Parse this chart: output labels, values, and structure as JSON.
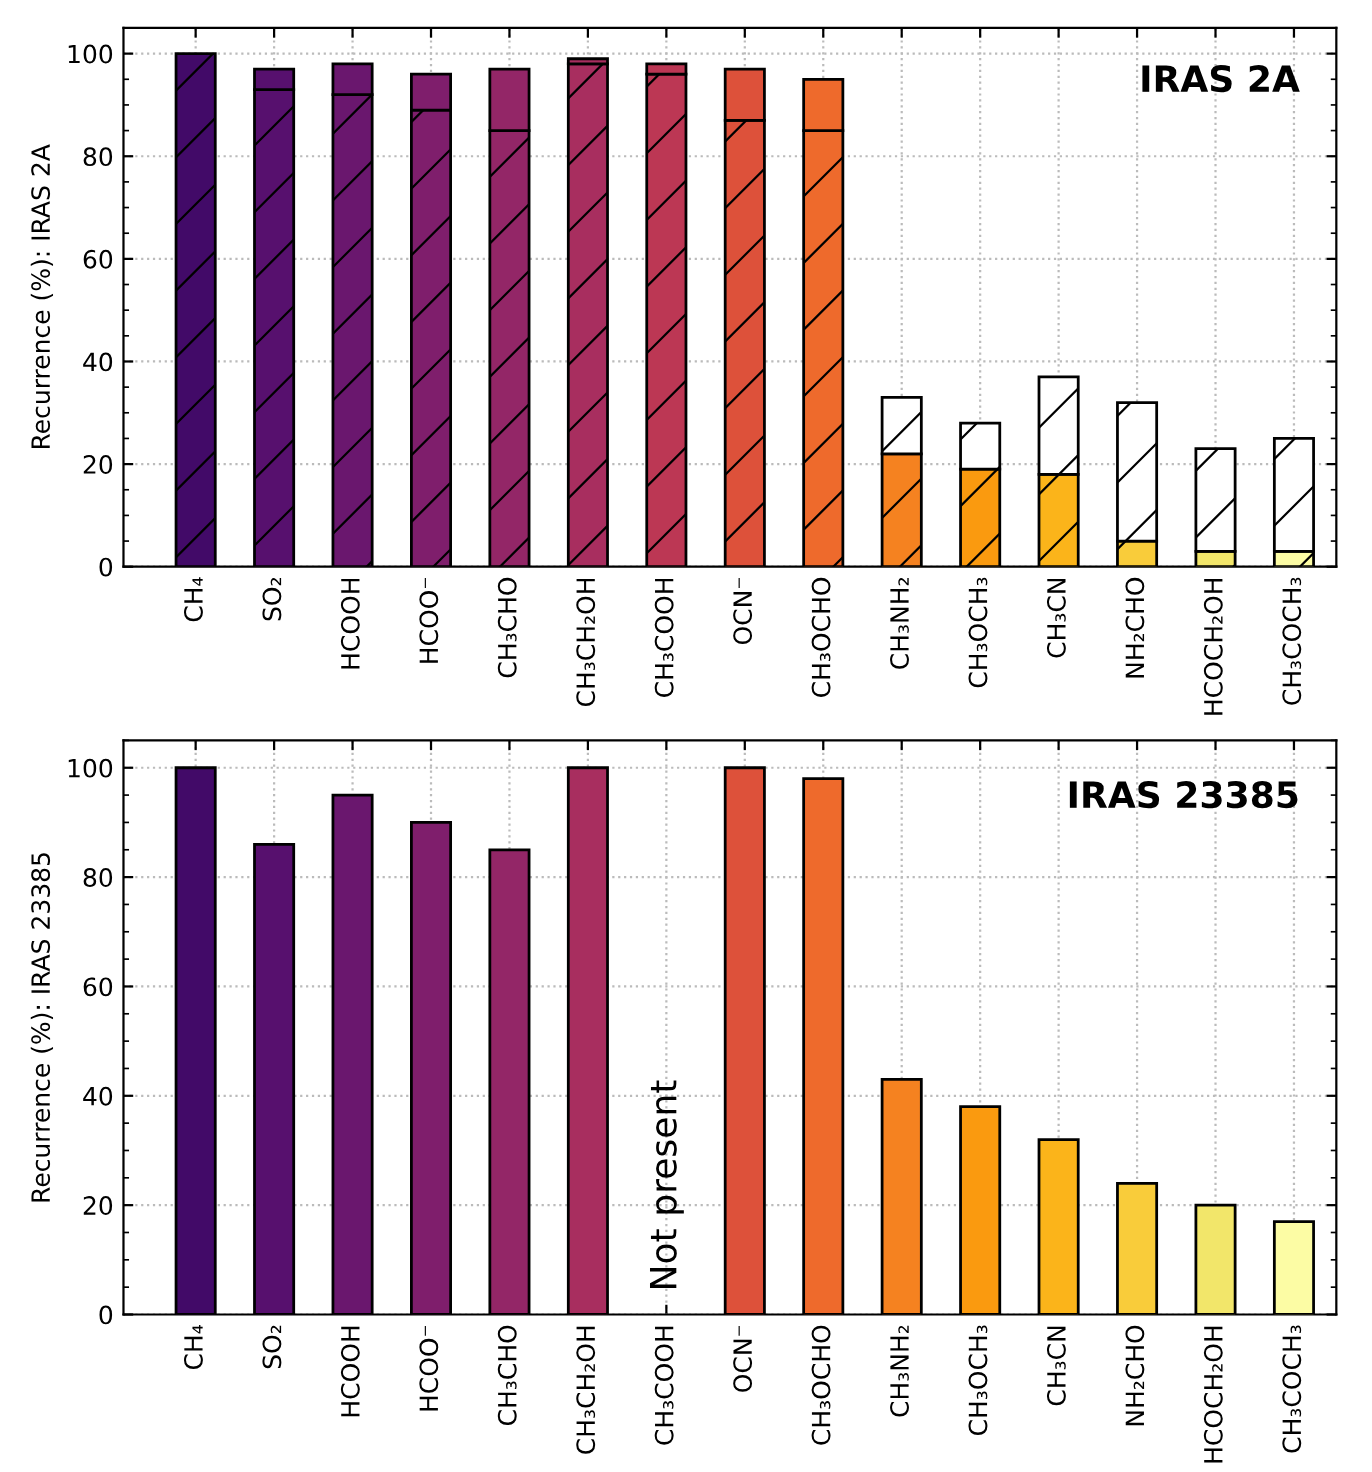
{
  "chart_data": [
    {
      "type": "bar",
      "title": "IRAS 2A",
      "ylabel": "Recurrence (%): IRAS 2A",
      "stacked": true,
      "categories": [
        "CH₄",
        "SO₂",
        "HCOOH",
        "HCOO⁻",
        "CH₃CHO",
        "CH₃CH₂OH",
        "CH₃COOH",
        "OCN⁻",
        "CH₃OCHO",
        "CH₃NH₂",
        "CH₃OCH₃",
        "CH₃CN",
        "NH₂CHO",
        "HCOCH₂OH",
        "CH₃COCH₃"
      ],
      "series": [
        {
          "colors": [
            "#420a68",
            "#57106e",
            "#6a176e",
            "#7f1e6c",
            "#932667",
            "#a82e5f",
            "#bc3754",
            "#dd513a",
            "#ee6a2c",
            "#f58220",
            "#fa9a0f",
            "#fbb41a",
            "#f9cc3a",
            "#f2e66a",
            "#fcfca4"
          ],
          "values": [
            100,
            93,
            92,
            89,
            85,
            98,
            96,
            87,
            85,
            22,
            19,
            18,
            5,
            3,
            3
          ]
        },
        {
          "colors": [
            "#420a68",
            "#57106e",
            "#6a176e",
            "#7f1e6c",
            "#932667",
            "#a82e5f",
            "#bc3754",
            "#dd513a",
            "#ee6a2c",
            "#ffffff",
            "#ffffff",
            "#ffffff",
            "#ffffff",
            "#ffffff",
            "#ffffff"
          ],
          "values": [
            0,
            4,
            6,
            7,
            12,
            1,
            2,
            10,
            10,
            11,
            9,
            19,
            27,
            20,
            22
          ]
        }
      ],
      "ylim": [
        0,
        105
      ],
      "yticks": [
        0,
        20,
        40,
        60,
        80,
        100
      ],
      "grid": true
    },
    {
      "type": "bar",
      "title": "IRAS 23385",
      "ylabel": "Recurrence (%): IRAS 23385",
      "categories": [
        "CH₄",
        "SO₂",
        "HCOOH",
        "HCOO⁻",
        "CH₃CHO",
        "CH₃CH₂OH",
        "CH₃COOH",
        "OCN⁻",
        "CH₃OCHO",
        "CH₃NH₂",
        "CH₃OCH₃",
        "CH₃CN",
        "NH₂CHO",
        "HCOCH₂OH",
        "CH₃COCH₃"
      ],
      "series": [
        {
          "colors": [
            "#420a68",
            "#57106e",
            "#6a176e",
            "#7f1e6c",
            "#932667",
            "#a82e5f",
            "#bc3754",
            "#dd513a",
            "#ee6a2c",
            "#f58220",
            "#fa9a0f",
            "#fbb41a",
            "#f9cc3a",
            "#f2e66a",
            "#fcfca4"
          ],
          "values": [
            100,
            86,
            95,
            90,
            85,
            100,
            null,
            100,
            98,
            43,
            38,
            32,
            24,
            20,
            17
          ]
        }
      ],
      "annotations": [
        "Not present"
      ],
      "ylim": [
        0,
        105
      ],
      "yticks": [
        0,
        20,
        40,
        60,
        80,
        100
      ],
      "grid": true
    }
  ]
}
